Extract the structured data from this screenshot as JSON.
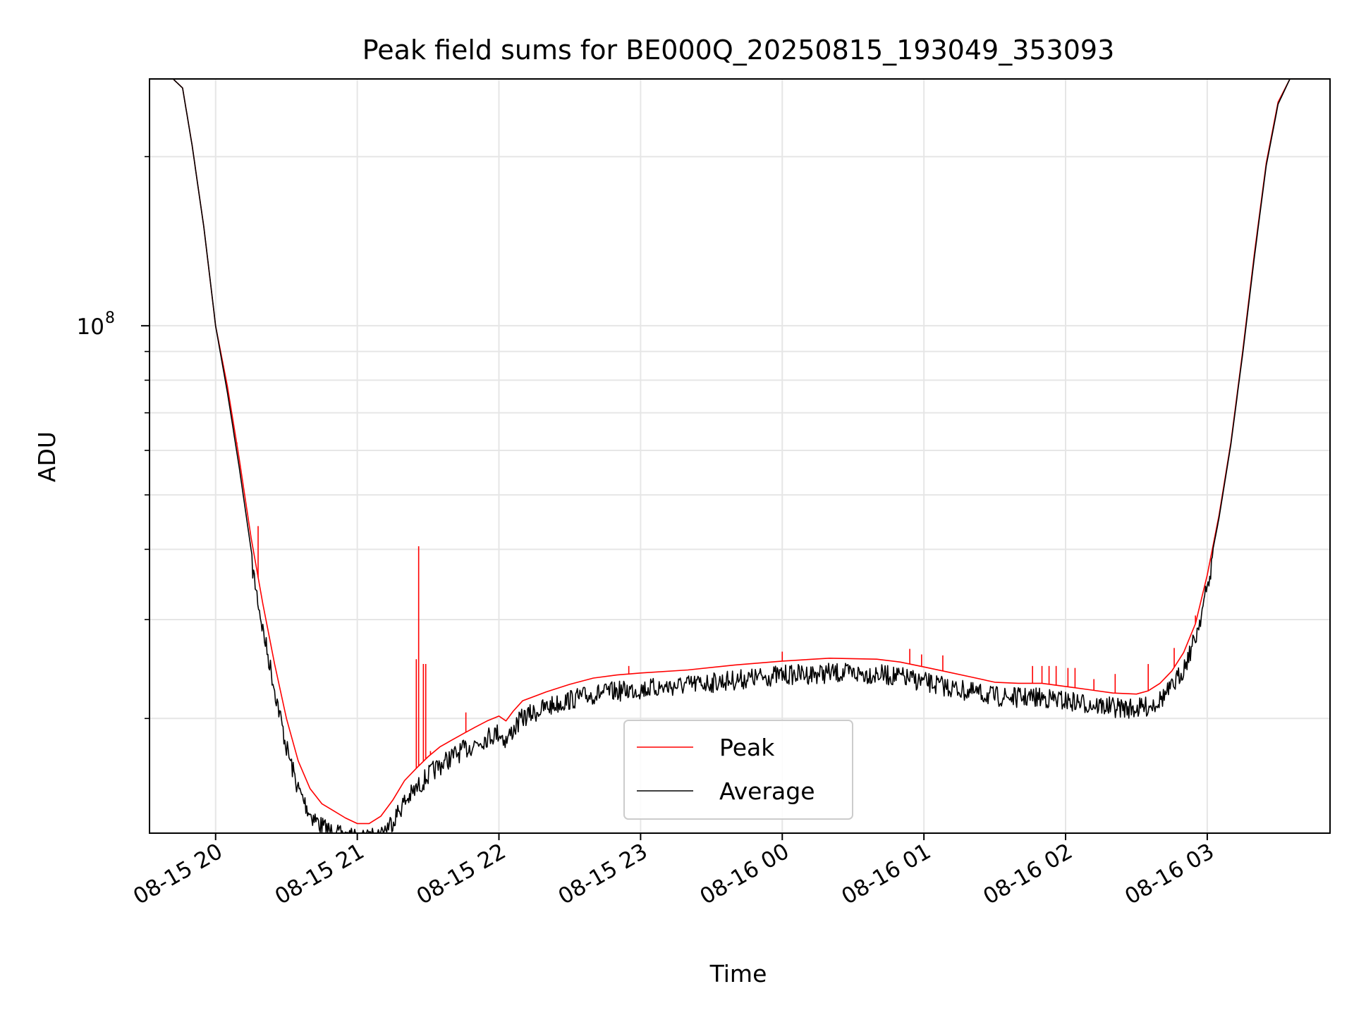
{
  "chart_data": {
    "type": "line",
    "title": "Peak field sums for BE000Q_20250815_193049_353093",
    "xlabel": "Time",
    "ylabel": "ADU",
    "yscale": "log",
    "xlim": [
      "2025-08-15T19:32",
      "2025-08-16T03:52"
    ],
    "ylim": [
      12500000,
      275000000
    ],
    "x_ticks": [
      {
        "x": "2025-08-15T20:00",
        "label": "08-15 20"
      },
      {
        "x": "2025-08-15T21:00",
        "label": "08-15 21"
      },
      {
        "x": "2025-08-15T22:00",
        "label": "08-15 22"
      },
      {
        "x": "2025-08-15T23:00",
        "label": "08-15 23"
      },
      {
        "x": "2025-08-16T00:00",
        "label": "08-16 00"
      },
      {
        "x": "2025-08-16T01:00",
        "label": "08-16 01"
      },
      {
        "x": "2025-08-16T02:00",
        "label": "08-16 02"
      },
      {
        "x": "2025-08-16T03:00",
        "label": "08-16 03"
      }
    ],
    "y_major_ticks": [
      {
        "value": 100000000,
        "base": "10",
        "exp": "8"
      }
    ],
    "y_minor_ticks": [
      20000000,
      30000000,
      40000000,
      50000000,
      60000000,
      70000000,
      80000000,
      90000000,
      200000000
    ],
    "grid": true,
    "legend_position": "lower center",
    "series": [
      {
        "name": "Peak",
        "color": "#ff0000",
        "x": [
          "2025-08-15T19:42",
          "2025-08-15T19:46",
          "2025-08-15T19:50",
          "2025-08-15T19:55",
          "2025-08-15T20:00",
          "2025-08-15T20:05",
          "2025-08-15T20:10",
          "2025-08-15T20:15",
          "2025-08-15T20:20",
          "2025-08-15T20:25",
          "2025-08-15T20:30",
          "2025-08-15T20:35",
          "2025-08-15T20:40",
          "2025-08-15T20:45",
          "2025-08-15T20:50",
          "2025-08-15T20:55",
          "2025-08-15T21:00",
          "2025-08-15T21:05",
          "2025-08-15T21:10",
          "2025-08-15T21:15",
          "2025-08-15T21:20",
          "2025-08-15T21:25",
          "2025-08-15T21:30",
          "2025-08-15T21:35",
          "2025-08-15T21:40",
          "2025-08-15T21:45",
          "2025-08-15T21:50",
          "2025-08-15T21:55",
          "2025-08-15T22:00",
          "2025-08-15T22:03",
          "2025-08-15T22:06",
          "2025-08-15T22:10",
          "2025-08-15T22:20",
          "2025-08-15T22:30",
          "2025-08-15T22:40",
          "2025-08-15T22:50",
          "2025-08-15T23:00",
          "2025-08-15T23:20",
          "2025-08-15T23:40",
          "2025-08-16T00:00",
          "2025-08-16T00:20",
          "2025-08-16T00:40",
          "2025-08-16T00:50",
          "2025-08-16T01:00",
          "2025-08-16T01:10",
          "2025-08-16T01:20",
          "2025-08-16T01:30",
          "2025-08-16T01:40",
          "2025-08-16T01:50",
          "2025-08-16T02:00",
          "2025-08-16T02:10",
          "2025-08-16T02:20",
          "2025-08-16T02:30",
          "2025-08-16T02:35",
          "2025-08-16T02:40",
          "2025-08-16T02:45",
          "2025-08-16T02:50",
          "2025-08-16T02:55",
          "2025-08-16T03:00",
          "2025-08-16T03:05",
          "2025-08-16T03:10",
          "2025-08-16T03:15",
          "2025-08-16T03:20",
          "2025-08-16T03:25",
          "2025-08-16T03:30",
          "2025-08-16T03:35",
          "2025-08-16T03:40"
        ],
        "values": [
          275000000,
          265000000,
          210000000,
          150000000,
          100000000,
          78000000,
          58000000,
          42000000,
          32000000,
          25000000,
          20000000,
          16800000,
          15000000,
          14100000,
          13700000,
          13300000,
          13000000,
          13000000,
          13400000,
          14300000,
          15500000,
          16300000,
          17100000,
          17800000,
          18300000,
          18800000,
          19300000,
          19800000,
          20200000,
          19800000,
          20600000,
          21500000,
          22300000,
          23000000,
          23600000,
          23900000,
          24100000,
          24400000,
          24900000,
          25300000,
          25600000,
          25500000,
          25200000,
          24700000,
          24200000,
          23700000,
          23200000,
          23100000,
          23100000,
          22800000,
          22500000,
          22200000,
          22100000,
          22400000,
          23100000,
          24300000,
          26200000,
          29500000,
          36000000,
          46000000,
          62000000,
          90000000,
          135000000,
          195000000,
          250000000,
          275000000,
          275000000
        ],
        "spikes": [
          {
            "x": "2025-08-15T20:09",
            "value": 62000000
          },
          {
            "x": "2025-08-15T20:18",
            "value": 44000000
          },
          {
            "x": "2025-08-15T21:25",
            "value": 25500000
          },
          {
            "x": "2025-08-15T21:26",
            "value": 40500000
          },
          {
            "x": "2025-08-15T21:28",
            "value": 25000000
          },
          {
            "x": "2025-08-15T21:29",
            "value": 25000000
          },
          {
            "x": "2025-08-15T21:31",
            "value": 17500000
          },
          {
            "x": "2025-08-15T21:46",
            "value": 20500000
          },
          {
            "x": "2025-08-15T22:55",
            "value": 24800000
          },
          {
            "x": "2025-08-16T00:00",
            "value": 26300000
          },
          {
            "x": "2025-08-16T00:54",
            "value": 26600000
          },
          {
            "x": "2025-08-16T00:59",
            "value": 26000000
          },
          {
            "x": "2025-08-16T01:08",
            "value": 25900000
          },
          {
            "x": "2025-08-16T01:46",
            "value": 24800000
          },
          {
            "x": "2025-08-16T01:50",
            "value": 24800000
          },
          {
            "x": "2025-08-16T01:53",
            "value": 24800000
          },
          {
            "x": "2025-08-16T01:56",
            "value": 24800000
          },
          {
            "x": "2025-08-16T02:01",
            "value": 24600000
          },
          {
            "x": "2025-08-16T02:04",
            "value": 24600000
          },
          {
            "x": "2025-08-16T02:12",
            "value": 23500000
          },
          {
            "x": "2025-08-16T02:21",
            "value": 24000000
          },
          {
            "x": "2025-08-16T02:35",
            "value": 25000000
          },
          {
            "x": "2025-08-16T02:46",
            "value": 26700000
          },
          {
            "x": "2025-08-16T02:55",
            "value": 30500000
          }
        ]
      },
      {
        "name": "Average",
        "color": "#000000",
        "x": [
          "2025-08-15T19:42",
          "2025-08-15T19:46",
          "2025-08-15T19:50",
          "2025-08-15T19:55",
          "2025-08-15T20:00",
          "2025-08-15T20:05",
          "2025-08-15T20:10",
          "2025-08-15T20:15",
          "2025-08-15T20:20",
          "2025-08-15T20:25",
          "2025-08-15T20:30",
          "2025-08-15T20:35",
          "2025-08-15T20:40",
          "2025-08-15T20:45",
          "2025-08-15T20:50",
          "2025-08-15T20:55",
          "2025-08-15T21:00",
          "2025-08-15T21:05",
          "2025-08-15T21:10",
          "2025-08-15T21:15",
          "2025-08-15T21:20",
          "2025-08-15T21:25",
          "2025-08-15T21:30",
          "2025-08-15T21:35",
          "2025-08-15T21:40",
          "2025-08-15T21:45",
          "2025-08-15T21:50",
          "2025-08-15T21:55",
          "2025-08-15T22:00",
          "2025-08-15T22:03",
          "2025-08-15T22:06",
          "2025-08-15T22:10",
          "2025-08-15T22:20",
          "2025-08-15T22:30",
          "2025-08-15T22:40",
          "2025-08-15T22:50",
          "2025-08-15T23:00",
          "2025-08-15T23:20",
          "2025-08-15T23:40",
          "2025-08-16T00:00",
          "2025-08-16T00:20",
          "2025-08-16T00:40",
          "2025-08-16T00:50",
          "2025-08-16T01:00",
          "2025-08-16T01:10",
          "2025-08-16T01:20",
          "2025-08-16T01:30",
          "2025-08-16T01:40",
          "2025-08-16T01:50",
          "2025-08-16T02:00",
          "2025-08-16T02:10",
          "2025-08-16T02:20",
          "2025-08-16T02:30",
          "2025-08-16T02:35",
          "2025-08-16T02:40",
          "2025-08-16T02:45",
          "2025-08-16T02:50",
          "2025-08-16T02:55",
          "2025-08-16T03:00",
          "2025-08-16T03:05",
          "2025-08-16T03:10",
          "2025-08-16T03:15",
          "2025-08-16T03:20",
          "2025-08-16T03:25",
          "2025-08-16T03:30",
          "2025-08-16T03:35",
          "2025-08-16T03:40"
        ],
        "values": [
          275000000,
          265000000,
          210000000,
          150000000,
          100000000,
          76000000,
          56000000,
          40000000,
          30000000,
          23500000,
          18500000,
          15600000,
          14100000,
          13400000,
          13000000,
          12800000,
          12700000,
          12700000,
          13000000,
          13700000,
          14800000,
          15600000,
          16500000,
          17200000,
          17800000,
          18300000,
          18800000,
          19300000,
          19700000,
          19000000,
          19900000,
          20900000,
          21800000,
          22500000,
          23000000,
          23300000,
          23500000,
          23900000,
          24400000,
          24900000,
          25100000,
          25000000,
          24700000,
          24200000,
          23700000,
          23200000,
          22800000,
          22700000,
          22700000,
          22400000,
          22100000,
          21800000,
          21700000,
          21900000,
          22500000,
          23600000,
          25600000,
          29000000,
          35500000,
          45500000,
          61500000,
          89000000,
          133000000,
          193000000,
          248000000,
          275000000,
          275000000
        ],
        "noise_fraction": 0.05
      }
    ]
  }
}
